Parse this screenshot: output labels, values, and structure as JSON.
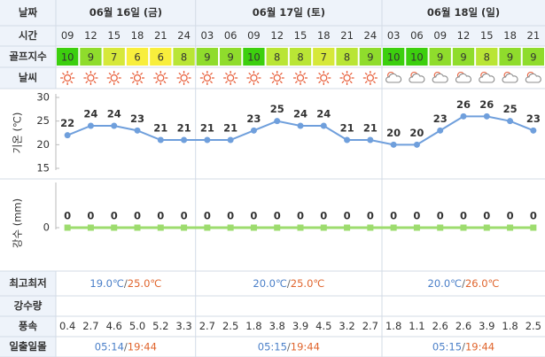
{
  "row_labels": {
    "date": "날짜",
    "time": "시간",
    "golf": "골프지수",
    "weather": "날씨",
    "minmax": "최고최저",
    "rain": "강수량",
    "wind": "풍속",
    "sun": "일출일몰"
  },
  "days": [
    {
      "date": "06월 16일 (금)",
      "hours": [
        "09",
        "12",
        "15",
        "18",
        "21",
        "24"
      ],
      "golf": [
        "10",
        "9",
        "7",
        "6",
        "6",
        "8"
      ],
      "golf_colors": [
        "#3ccf0e",
        "#8fdc2c",
        "#d6e83a",
        "#f8ee3c",
        "#f8ee3c",
        "#b9e535"
      ],
      "wind": [
        "0.4",
        "2.7",
        "4.6",
        "5.0",
        "5.2",
        "3.3"
      ],
      "min": "19.0℃",
      "slash": "/",
      "max": "25.0℃",
      "sunrise": "05:14",
      "sunset": "19:44"
    },
    {
      "date": "06월 17일 (토)",
      "hours": [
        "03",
        "06",
        "09",
        "12",
        "15",
        "18",
        "21",
        "24"
      ],
      "golf": [
        "9",
        "9",
        "10",
        "8",
        "8",
        "7",
        "8",
        "9"
      ],
      "golf_colors": [
        "#8fdc2c",
        "#8fdc2c",
        "#3ccf0e",
        "#b9e535",
        "#b9e535",
        "#d6e83a",
        "#b9e535",
        "#8fdc2c"
      ],
      "wind": [
        "2.7",
        "2.5",
        "1.8",
        "3.8",
        "3.9",
        "4.5",
        "3.2",
        "2.7"
      ],
      "min": "20.0℃",
      "slash": "/",
      "max": "25.0℃",
      "sunrise": "05:15",
      "sunset": "19:44"
    },
    {
      "date": "06월 18일 (일)",
      "hours": [
        "03",
        "06",
        "09",
        "12",
        "15",
        "18",
        "21"
      ],
      "golf": [
        "10",
        "10",
        "9",
        "9",
        "8",
        "9",
        "9"
      ],
      "golf_colors": [
        "#3ccf0e",
        "#3ccf0e",
        "#8fdc2c",
        "#8fdc2c",
        "#b9e535",
        "#8fdc2c",
        "#8fdc2c"
      ],
      "wind": [
        "1.8",
        "1.1",
        "2.6",
        "2.6",
        "3.9",
        "1.8",
        "2.5"
      ],
      "min": "20.0℃",
      "slash": "/",
      "max": "26.0℃",
      "sunrise": "05:15",
      "sunset": "19:44"
    }
  ],
  "temperature_chart": {
    "type": "line",
    "ylabel": "기온 (℃)",
    "color": "#6f9fdc",
    "ylim": [
      15,
      30
    ],
    "yticks": [
      15,
      20,
      25,
      30
    ],
    "values": [
      22,
      24,
      24,
      23,
      21,
      21,
      21,
      21,
      23,
      25,
      24,
      24,
      21,
      21,
      20,
      20,
      23,
      26,
      26,
      25,
      23
    ]
  },
  "rain_chart": {
    "type": "line",
    "ylabel": "강수 (mm)",
    "color": "#9ddc6e",
    "ylim": [
      0,
      10
    ],
    "yticks": [
      0
    ],
    "values": [
      0,
      0,
      0,
      0,
      0,
      0,
      0,
      0,
      0,
      0,
      0,
      0,
      0,
      0,
      0,
      0,
      0,
      0,
      0,
      0,
      0
    ]
  }
}
